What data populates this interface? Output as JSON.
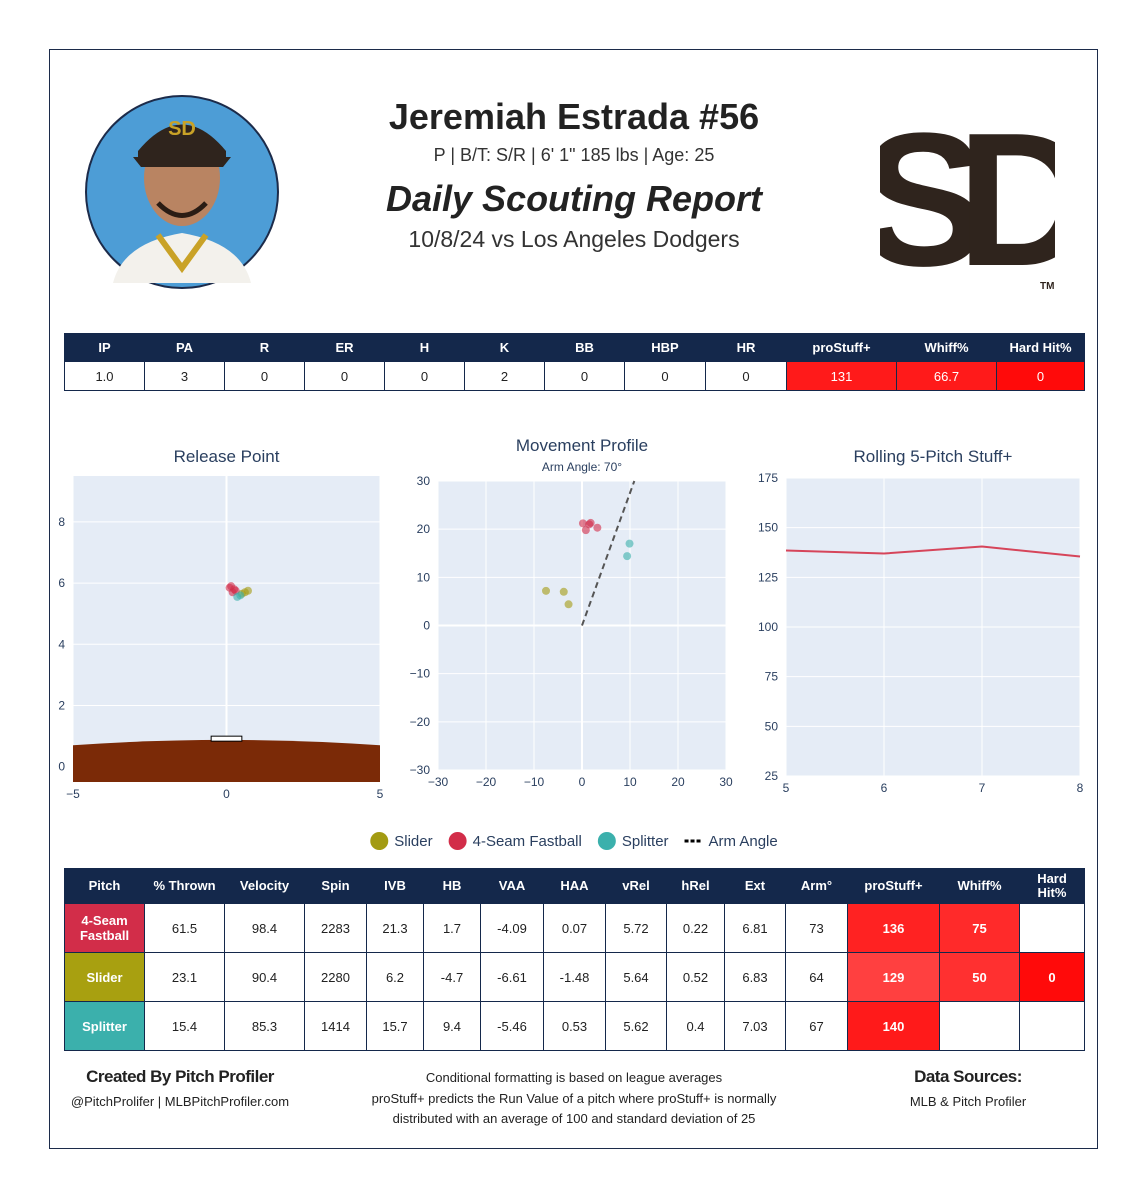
{
  "header": {
    "name": "Jeremiah Estrada #56",
    "bio": "P | B/T: S/R | 6' 1\" 185 lbs | Age: 25",
    "report_title": "Daily Scouting Report",
    "game": "10/8/24 vs Los Angeles Dodgers"
  },
  "logo": {
    "text": "SD",
    "mark": "TM"
  },
  "summary_table": {
    "columns": [
      "IP",
      "PA",
      "R",
      "ER",
      "H",
      "K",
      "BB",
      "HBP",
      "HR",
      "proStuff+",
      "Whiff%",
      "Hard Hit%"
    ],
    "rows": [
      [
        "1.0",
        "3",
        "0",
        "0",
        "0",
        "2",
        "0",
        "0",
        "0",
        "131",
        "66.7",
        "0"
      ]
    ],
    "cell_colors": [
      [
        null,
        null,
        null,
        null,
        null,
        null,
        null,
        null,
        null,
        "#ff1a1a",
        "#ff1a1a",
        "#ff0a0a"
      ]
    ]
  },
  "chart_data": [
    {
      "type": "scatter",
      "title": "Release Point",
      "xlim": [
        -5,
        5
      ],
      "xticks": [
        {
          "value": -5,
          "label": "−5"
        },
        0,
        5
      ],
      "ylim": [
        -0.5,
        9.5
      ],
      "yticks": [
        0,
        2,
        4,
        6,
        8
      ],
      "series": [
        {
          "name": "Slider",
          "color": "#a39b12",
          "x": [
            0.5,
            0.6,
            0.7
          ],
          "values": [
            5.65,
            5.7,
            5.75
          ]
        },
        {
          "name": "4-Seam Fastball",
          "color": "#d22d49",
          "x": [
            0.1,
            0.2,
            0.3,
            0.15,
            0.25
          ],
          "values": [
            5.85,
            5.7,
            5.75,
            5.9,
            5.8
          ]
        },
        {
          "name": "Splitter",
          "color": "#3bb0ac",
          "x": [
            0.35,
            0.45
          ],
          "values": [
            5.55,
            5.6
          ]
        }
      ]
    },
    {
      "type": "scatter",
      "title": "Movement Profile",
      "subtitle": "Arm Angle: 70°",
      "xlim": [
        -30,
        30
      ],
      "xticks": [
        {
          "value": -30,
          "label": "−30"
        },
        {
          "value": -20,
          "label": "−20"
        },
        {
          "value": -10,
          "label": "−10"
        },
        0,
        10,
        20,
        30
      ],
      "ylim": [
        -30,
        30
      ],
      "yticks": [
        {
          "value": -30,
          "label": "−30"
        },
        {
          "value": -20,
          "label": "−20"
        },
        {
          "value": -10,
          "label": "−10"
        },
        0,
        10,
        20,
        30
      ],
      "series": [
        {
          "name": "Slider",
          "color": "#a39b12",
          "x": [
            -7.5,
            -3.8,
            -2.8
          ],
          "values": [
            7.2,
            7,
            4.4
          ]
        },
        {
          "name": "4-Seam Fastball",
          "color": "#d22d49",
          "x": [
            0.2,
            1.8,
            3.2,
            0.8,
            1.5
          ],
          "values": [
            21.2,
            21.3,
            20.3,
            19.8,
            21
          ]
        },
        {
          "name": "Splitter",
          "color": "#3bb0ac",
          "x": [
            9.9,
            9.4
          ],
          "values": [
            17,
            14.4
          ]
        },
        {
          "name": "Arm Angle",
          "color": "#555555",
          "dash": true,
          "x": [
            0,
            10.9
          ],
          "values": [
            0,
            30
          ]
        }
      ]
    },
    {
      "type": "line",
      "title": "Rolling 5-Pitch Stuff+",
      "x": [
        5,
        6,
        7,
        8
      ],
      "values": [
        138.5,
        137,
        140.5,
        135.5
      ],
      "color": "#d6455a",
      "xlim": [
        5,
        8
      ],
      "xticks": [
        5,
        6,
        7,
        8
      ],
      "ylim": [
        25,
        175
      ],
      "yticks": [
        25,
        50,
        75,
        100,
        125,
        150,
        175
      ]
    }
  ],
  "pitch_table": {
    "columns": [
      "Pitch",
      "% Thrown",
      "Velocity",
      "Spin",
      "IVB",
      "HB",
      "VAA",
      "HAA",
      "vRel",
      "hRel",
      "Ext",
      "Arm°",
      "proStuff+",
      "Whiff%",
      "Hard Hit%"
    ],
    "rows": [
      [
        "4-Seam Fastball",
        61.5,
        98.4,
        2283,
        21.3,
        1.7,
        -4.09,
        0.07,
        5.72,
        0.22,
        6.81,
        73,
        136,
        75,
        null
      ],
      [
        "Slider",
        23.1,
        90.4,
        2280,
        6.2,
        -4.7,
        -6.61,
        -1.48,
        5.64,
        0.52,
        6.83,
        64,
        129,
        50,
        0
      ],
      [
        "Splitter",
        15.4,
        85.3,
        1414,
        15.7,
        9.4,
        -5.46,
        0.53,
        5.62,
        0.4,
        7.03,
        67,
        140,
        null,
        null
      ]
    ],
    "cell_colors": [
      [
        "#d22d49",
        null,
        null,
        null,
        null,
        null,
        null,
        null,
        null,
        null,
        null,
        null,
        "#ff2222",
        "#ff2a2a",
        null
      ],
      [
        "#a8a010",
        null,
        null,
        null,
        null,
        null,
        null,
        null,
        null,
        null,
        null,
        null,
        "#ff4040",
        "#ff3030",
        "#ff0a0a"
      ],
      [
        "#3bb0ac",
        null,
        null,
        null,
        null,
        null,
        null,
        null,
        null,
        null,
        null,
        null,
        "#ff1a1a",
        null,
        null
      ]
    ]
  },
  "footer": {
    "left_title": "Created By Pitch Profiler",
    "left_sub": "@PitchProlifer | MLBPitchProfiler.com",
    "notes": [
      "Conditional formatting is based on league averages",
      "proStuff+ predicts the Run Value of a pitch where proStuff+ is normally",
      "distributed with an average of 100 and standard deviation of 25"
    ],
    "right_title": "Data Sources:",
    "right_sub": "MLB & Pitch Profiler"
  }
}
